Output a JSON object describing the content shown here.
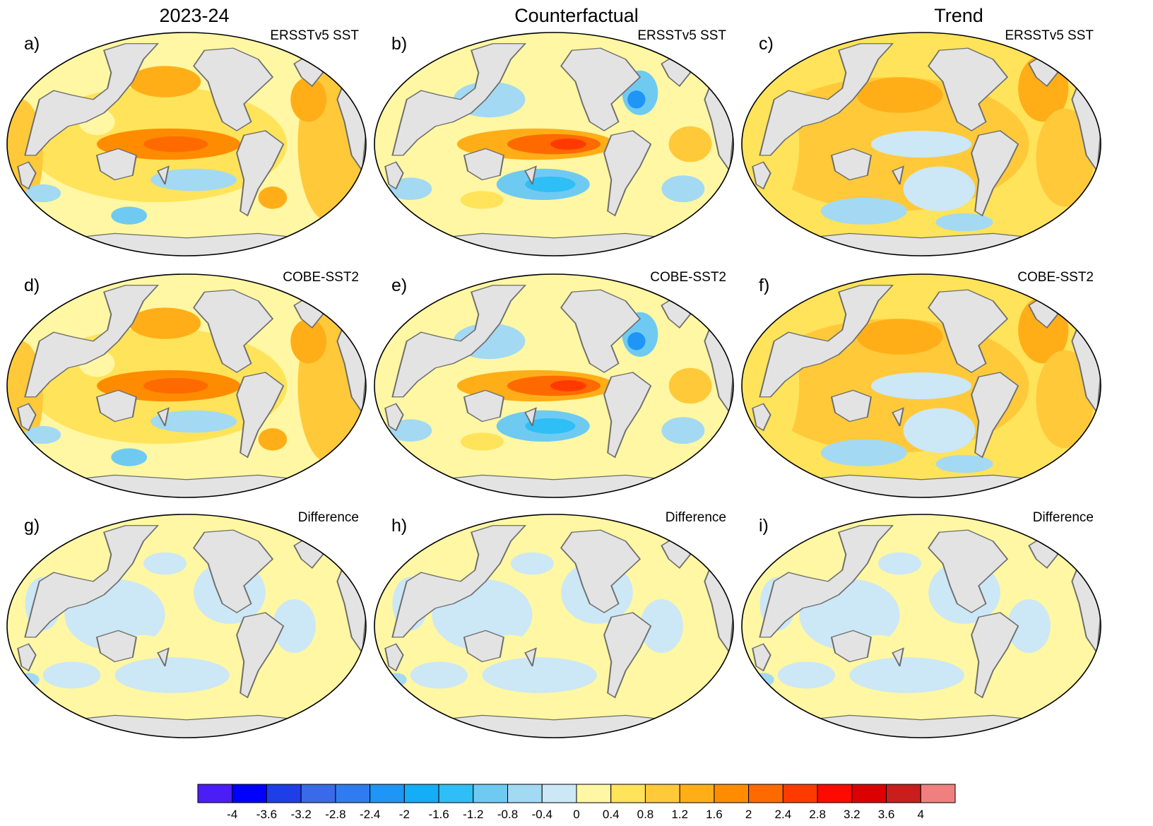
{
  "column_titles": [
    "2023-24",
    "Counterfactual",
    "Trend"
  ],
  "panels": [
    {
      "label": "a)",
      "dataset": "ERSSTv5 SST",
      "column": "2023-24",
      "pattern": "obs"
    },
    {
      "label": "b)",
      "dataset": "ERSSTv5 SST",
      "column": "Counterfactual",
      "pattern": "cf"
    },
    {
      "label": "c)",
      "dataset": "ERSSTv5 SST",
      "column": "Trend",
      "pattern": "trend"
    },
    {
      "label": "d)",
      "dataset": "COBE-SST2",
      "column": "2023-24",
      "pattern": "obs"
    },
    {
      "label": "e)",
      "dataset": "COBE-SST2",
      "column": "Counterfactual",
      "pattern": "cf"
    },
    {
      "label": "f)",
      "dataset": "COBE-SST2",
      "column": "Trend",
      "pattern": "trend"
    },
    {
      "label": "g)",
      "dataset": "Difference",
      "column": "2023-24",
      "pattern": "diff"
    },
    {
      "label": "h)",
      "dataset": "Difference",
      "column": "Counterfactual",
      "pattern": "diff"
    },
    {
      "label": "i)",
      "dataset": "Difference",
      "column": "Trend",
      "pattern": "diff"
    }
  ],
  "colorbar": {
    "ticks": [
      "-4",
      "-3.6",
      "-3.2",
      "-2.8",
      "-2.4",
      "-2",
      "-1.6",
      "-1.2",
      "-0.8",
      "-0.4",
      "0",
      "0.4",
      "0.8",
      "1.2",
      "1.6",
      "2",
      "2.4",
      "2.8",
      "3.2",
      "3.6",
      "4"
    ],
    "colors": [
      "#4b1ef5",
      "#0000ff",
      "#1f3ee6",
      "#3b6ae8",
      "#2f7cf0",
      "#1f95f5",
      "#15adf5",
      "#2fbef5",
      "#6fcaf2",
      "#a3d9f2",
      "#cce7f6",
      "#fff7a3",
      "#ffe35a",
      "#ffc93a",
      "#ffae18",
      "#ff8c00",
      "#ff6a00",
      "#ff3a00",
      "#ff0a00",
      "#dc0000",
      "#c81e1e",
      "#f08080"
    ]
  },
  "colors": {
    "land": "#e3e3e3",
    "coast": "#6e6e6e",
    "zero_band": "#fff7a3",
    "neg_band": "#cce7f6"
  }
}
